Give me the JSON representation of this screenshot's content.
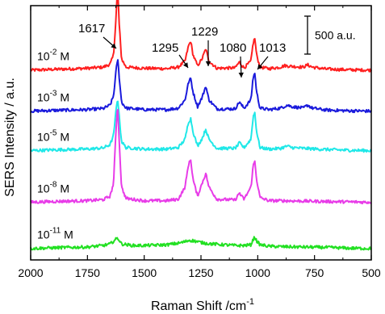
{
  "chart_data": {
    "type": "line",
    "xlabel": "Raman Shift /cm",
    "xlabel_sup": "-1",
    "ylabel": "SERS Intensity / a.u.",
    "xlim": [
      2000,
      500
    ],
    "x_reversed": true,
    "x_ticks": [
      2000,
      1750,
      1500,
      1250,
      1000,
      750,
      500
    ],
    "x_tick_labels": [
      "2000",
      "1750",
      "1500",
      "1250",
      "1000",
      "750",
      "500"
    ],
    "y_units": "a.u.",
    "y_axis_range": [
      -150,
      3200
    ],
    "scale_bar": {
      "value": 500,
      "label": "500 a.u."
    },
    "peaks": [
      {
        "label": "1617",
        "x": 1617
      },
      {
        "label": "1295",
        "x": 1295
      },
      {
        "label": "1229",
        "x": 1229
      },
      {
        "label": "1080",
        "x": 1080
      },
      {
        "label": "1013",
        "x": 1013
      }
    ],
    "series": [
      {
        "label_base": "10",
        "label_exp": "-2",
        "label_unit": "M",
        "color": "#ff2020",
        "baseline": 2350,
        "points": [
          [
            2000,
            0
          ],
          [
            1900,
            10
          ],
          [
            1750,
            25
          ],
          [
            1680,
            40
          ],
          [
            1650,
            80
          ],
          [
            1635,
            200
          ],
          [
            1625,
            650
          ],
          [
            1617,
            1100
          ],
          [
            1610,
            600
          ],
          [
            1600,
            150
          ],
          [
            1580,
            40
          ],
          [
            1500,
            25
          ],
          [
            1400,
            20
          ],
          [
            1350,
            40
          ],
          [
            1320,
            120
          ],
          [
            1305,
            320
          ],
          [
            1295,
            380
          ],
          [
            1285,
            200
          ],
          [
            1265,
            60
          ],
          [
            1245,
            150
          ],
          [
            1229,
            280
          ],
          [
            1215,
            120
          ],
          [
            1180,
            25
          ],
          [
            1100,
            30
          ],
          [
            1085,
            90
          ],
          [
            1080,
            110
          ],
          [
            1075,
            80
          ],
          [
            1060,
            30
          ],
          [
            1030,
            120
          ],
          [
            1020,
            360
          ],
          [
            1013,
            420
          ],
          [
            1005,
            200
          ],
          [
            990,
            40
          ],
          [
            950,
            20
          ],
          [
            900,
            40
          ],
          [
            880,
            60
          ],
          [
            850,
            50
          ],
          [
            800,
            40
          ],
          [
            780,
            70
          ],
          [
            760,
            40
          ],
          [
            700,
            15
          ],
          [
            600,
            5
          ],
          [
            500,
            0
          ]
        ]
      },
      {
        "label_base": "10",
        "label_exp": "-3",
        "label_unit": "M",
        "color": "#1a1adc",
        "baseline": 1810,
        "points": [
          [
            2000,
            0
          ],
          [
            1900,
            10
          ],
          [
            1750,
            20
          ],
          [
            1680,
            35
          ],
          [
            1650,
            80
          ],
          [
            1635,
            200
          ],
          [
            1625,
            500
          ],
          [
            1617,
            700
          ],
          [
            1610,
            450
          ],
          [
            1600,
            120
          ],
          [
            1580,
            40
          ],
          [
            1500,
            20
          ],
          [
            1400,
            20
          ],
          [
            1350,
            40
          ],
          [
            1320,
            150
          ],
          [
            1305,
            380
          ],
          [
            1295,
            430
          ],
          [
            1285,
            250
          ],
          [
            1265,
            60
          ],
          [
            1245,
            180
          ],
          [
            1229,
            330
          ],
          [
            1215,
            150
          ],
          [
            1180,
            30
          ],
          [
            1100,
            30
          ],
          [
            1085,
            100
          ],
          [
            1080,
            130
          ],
          [
            1075,
            90
          ],
          [
            1060,
            40
          ],
          [
            1030,
            150
          ],
          [
            1020,
            450
          ],
          [
            1013,
            500
          ],
          [
            1005,
            250
          ],
          [
            990,
            40
          ],
          [
            950,
            20
          ],
          [
            900,
            40
          ],
          [
            870,
            80
          ],
          [
            850,
            60
          ],
          [
            800,
            40
          ],
          [
            780,
            80
          ],
          [
            760,
            40
          ],
          [
            700,
            15
          ],
          [
            600,
            5
          ],
          [
            500,
            0
          ]
        ]
      },
      {
        "label_base": "10",
        "label_exp": "-5",
        "label_unit": "M",
        "color": "#20e8e8",
        "baseline": 1290,
        "points": [
          [
            2000,
            0
          ],
          [
            1900,
            10
          ],
          [
            1750,
            20
          ],
          [
            1680,
            35
          ],
          [
            1650,
            80
          ],
          [
            1635,
            200
          ],
          [
            1625,
            500
          ],
          [
            1617,
            700
          ],
          [
            1610,
            450
          ],
          [
            1600,
            120
          ],
          [
            1580,
            40
          ],
          [
            1500,
            20
          ],
          [
            1400,
            20
          ],
          [
            1350,
            40
          ],
          [
            1320,
            150
          ],
          [
            1305,
            380
          ],
          [
            1295,
            420
          ],
          [
            1285,
            250
          ],
          [
            1265,
            60
          ],
          [
            1245,
            160
          ],
          [
            1229,
            280
          ],
          [
            1215,
            150
          ],
          [
            1180,
            30
          ],
          [
            1100,
            30
          ],
          [
            1085,
            80
          ],
          [
            1080,
            110
          ],
          [
            1075,
            80
          ],
          [
            1060,
            40
          ],
          [
            1030,
            150
          ],
          [
            1020,
            450
          ],
          [
            1013,
            500
          ],
          [
            1005,
            250
          ],
          [
            990,
            40
          ],
          [
            950,
            20
          ],
          [
            900,
            30
          ],
          [
            870,
            60
          ],
          [
            850,
            40
          ],
          [
            800,
            30
          ],
          [
            700,
            15
          ],
          [
            600,
            5
          ],
          [
            500,
            0
          ]
        ]
      },
      {
        "label_base": "10",
        "label_exp": "-8",
        "label_unit": "M",
        "color": "#e83ce8",
        "baseline": 610,
        "points": [
          [
            2000,
            0
          ],
          [
            1900,
            10
          ],
          [
            1750,
            20
          ],
          [
            1680,
            35
          ],
          [
            1650,
            80
          ],
          [
            1635,
            250
          ],
          [
            1625,
            900
          ],
          [
            1617,
            1300
          ],
          [
            1610,
            800
          ],
          [
            1600,
            200
          ],
          [
            1580,
            50
          ],
          [
            1500,
            20
          ],
          [
            1400,
            20
          ],
          [
            1350,
            40
          ],
          [
            1320,
            200
          ],
          [
            1305,
            500
          ],
          [
            1295,
            560
          ],
          [
            1285,
            300
          ],
          [
            1265,
            80
          ],
          [
            1245,
            250
          ],
          [
            1229,
            380
          ],
          [
            1215,
            200
          ],
          [
            1180,
            40
          ],
          [
            1100,
            30
          ],
          [
            1085,
            100
          ],
          [
            1080,
            130
          ],
          [
            1075,
            90
          ],
          [
            1060,
            40
          ],
          [
            1030,
            200
          ],
          [
            1020,
            480
          ],
          [
            1013,
            540
          ],
          [
            1005,
            300
          ],
          [
            990,
            60
          ],
          [
            950,
            20
          ],
          [
            900,
            20
          ],
          [
            800,
            15
          ],
          [
            700,
            10
          ],
          [
            600,
            5
          ],
          [
            500,
            0
          ]
        ]
      },
      {
        "label_base": "10",
        "label_exp": "-11",
        "label_unit": "M",
        "color": "#22e022",
        "baseline": 0,
        "points": [
          [
            2000,
            0
          ],
          [
            1900,
            10
          ],
          [
            1750,
            20
          ],
          [
            1680,
            40
          ],
          [
            1650,
            60
          ],
          [
            1630,
            110
          ],
          [
            1617,
            140
          ],
          [
            1610,
            110
          ],
          [
            1600,
            60
          ],
          [
            1550,
            40
          ],
          [
            1500,
            40
          ],
          [
            1400,
            50
          ],
          [
            1350,
            70
          ],
          [
            1320,
            90
          ],
          [
            1300,
            110
          ],
          [
            1280,
            100
          ],
          [
            1250,
            80
          ],
          [
            1229,
            70
          ],
          [
            1200,
            60
          ],
          [
            1150,
            50
          ],
          [
            1100,
            40
          ],
          [
            1060,
            40
          ],
          [
            1030,
            50
          ],
          [
            1020,
            120
          ],
          [
            1013,
            150
          ],
          [
            1005,
            100
          ],
          [
            990,
            50
          ],
          [
            950,
            30
          ],
          [
            900,
            25
          ],
          [
            800,
            20
          ],
          [
            700,
            15
          ],
          [
            600,
            5
          ],
          [
            500,
            0
          ]
        ]
      }
    ]
  }
}
